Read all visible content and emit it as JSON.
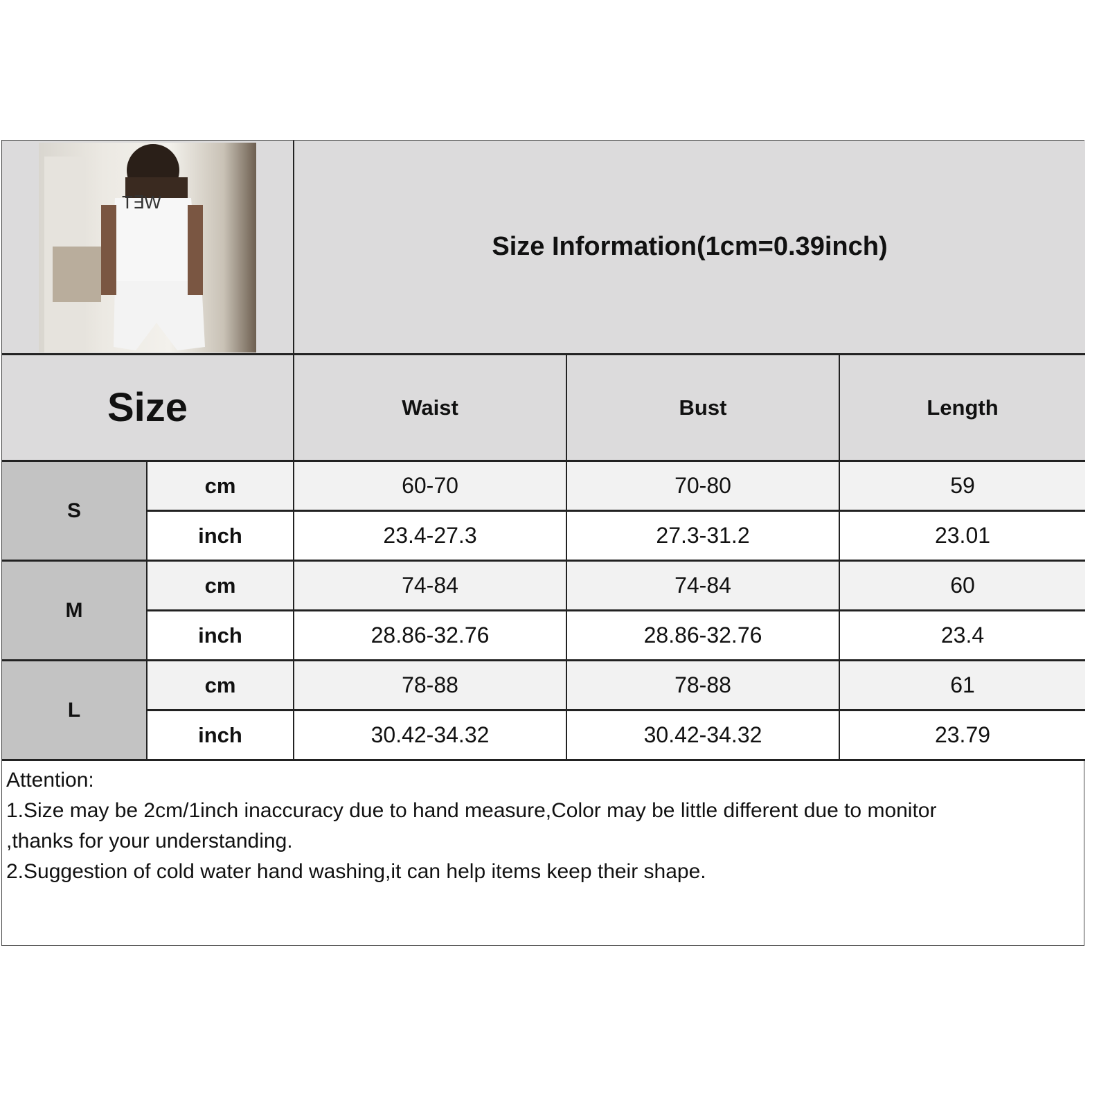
{
  "title": "Size Information(1cm=0.39inch)",
  "size_header": "Size",
  "columns": [
    "Waist",
    "Bust",
    "Length"
  ],
  "rows": [
    {
      "size": "S",
      "units": [
        {
          "unit": "cm",
          "values": [
            "60-70",
            "70-80",
            "59"
          ]
        },
        {
          "unit": "inch",
          "values": [
            "23.4-27.3",
            "27.3-31.2",
            "23.01"
          ]
        }
      ]
    },
    {
      "size": "M",
      "units": [
        {
          "unit": "cm",
          "values": [
            "74-84",
            "74-84",
            "60"
          ]
        },
        {
          "unit": "inch",
          "values": [
            "28.86-32.76",
            "28.86-32.76",
            "23.4"
          ]
        }
      ]
    },
    {
      "size": "L",
      "units": [
        {
          "unit": "cm",
          "values": [
            "78-88",
            "78-88",
            "61"
          ]
        },
        {
          "unit": "inch",
          "values": [
            "30.42-34.32",
            "30.42-34.32",
            "23.79"
          ]
        }
      ]
    }
  ],
  "notes": {
    "heading": "Attention:",
    "lines": [
      "1.Size may be 2cm/1inch inaccuracy due to hand measure,Color may be little different due to monitor",
      ",thanks for your understanding.",
      "2.Suggestion of cold water hand washing,it can help items keep their shape."
    ]
  },
  "product_photo": "woman wearing white tank top and shorts set"
}
